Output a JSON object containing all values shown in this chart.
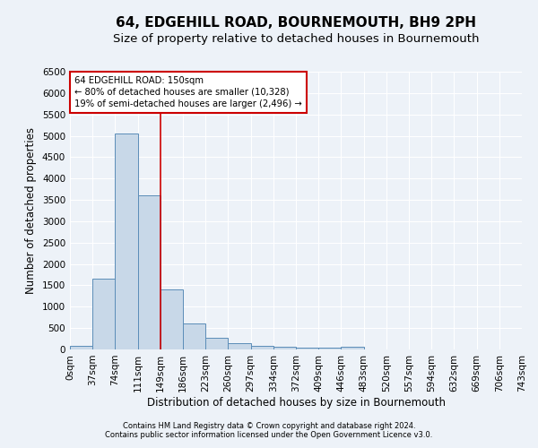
{
  "title": "64, EDGEHILL ROAD, BOURNEMOUTH, BH9 2PH",
  "subtitle": "Size of property relative to detached houses in Bournemouth",
  "xlabel": "Distribution of detached houses by size in Bournemouth",
  "ylabel": "Number of detached properties",
  "bin_labels": [
    "0sqm",
    "37sqm",
    "74sqm",
    "111sqm",
    "149sqm",
    "186sqm",
    "223sqm",
    "260sqm",
    "297sqm",
    "334sqm",
    "372sqm",
    "409sqm",
    "446sqm",
    "483sqm",
    "520sqm",
    "557sqm",
    "594sqm",
    "632sqm",
    "669sqm",
    "706sqm",
    "743sqm"
  ],
  "bar_values": [
    75,
    1650,
    5050,
    3600,
    1400,
    600,
    275,
    140,
    80,
    60,
    50,
    40,
    60,
    0,
    0,
    0,
    0,
    0,
    0,
    0
  ],
  "bar_color": "#c8d8e8",
  "bar_edge_color": "#5b8db8",
  "ylim": [
    0,
    6500
  ],
  "yticks": [
    0,
    500,
    1000,
    1500,
    2000,
    2500,
    3000,
    3500,
    4000,
    4500,
    5000,
    5500,
    6000,
    6500
  ],
  "vline_bin": 4,
  "vline_color": "#cc0000",
  "annotation_text": "64 EDGEHILL ROAD: 150sqm\n← 80% of detached houses are smaller (10,328)\n19% of semi-detached houses are larger (2,496) →",
  "annotation_box_color": "#cc0000",
  "footer1": "Contains HM Land Registry data © Crown copyright and database right 2024.",
  "footer2": "Contains public sector information licensed under the Open Government Licence v3.0.",
  "bg_color": "#edf2f8",
  "plot_bg_color": "#edf2f8",
  "title_fontsize": 11,
  "subtitle_fontsize": 9.5,
  "axis_label_fontsize": 8.5,
  "tick_fontsize": 7.5,
  "footer_fontsize": 6.0
}
